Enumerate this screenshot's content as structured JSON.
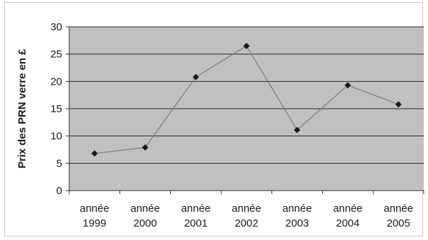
{
  "chart_data": {
    "type": "line",
    "title": "",
    "xlabel": "",
    "ylabel": "Prix des PRN verre en £",
    "categories": [
      [
        "année",
        "1999"
      ],
      [
        "année",
        "2000"
      ],
      [
        "année",
        "2001"
      ],
      [
        "année",
        "2002"
      ],
      [
        "année",
        "2003"
      ],
      [
        "année",
        "2004"
      ],
      [
        "année",
        "2005"
      ]
    ],
    "series": [
      {
        "values": [
          6.8,
          7.9,
          20.8,
          26.5,
          11.1,
          19.3,
          15.8
        ]
      }
    ],
    "ylim": [
      0,
      30
    ],
    "yticks": [
      0,
      5,
      10,
      15,
      20,
      25,
      30
    ],
    "grid": true,
    "legend": "none",
    "colors": {
      "plot_background": "#c0c0c0",
      "grid": "#2a2a2a",
      "line": "#7a7a7a",
      "marker": "#1a1a1a"
    }
  }
}
